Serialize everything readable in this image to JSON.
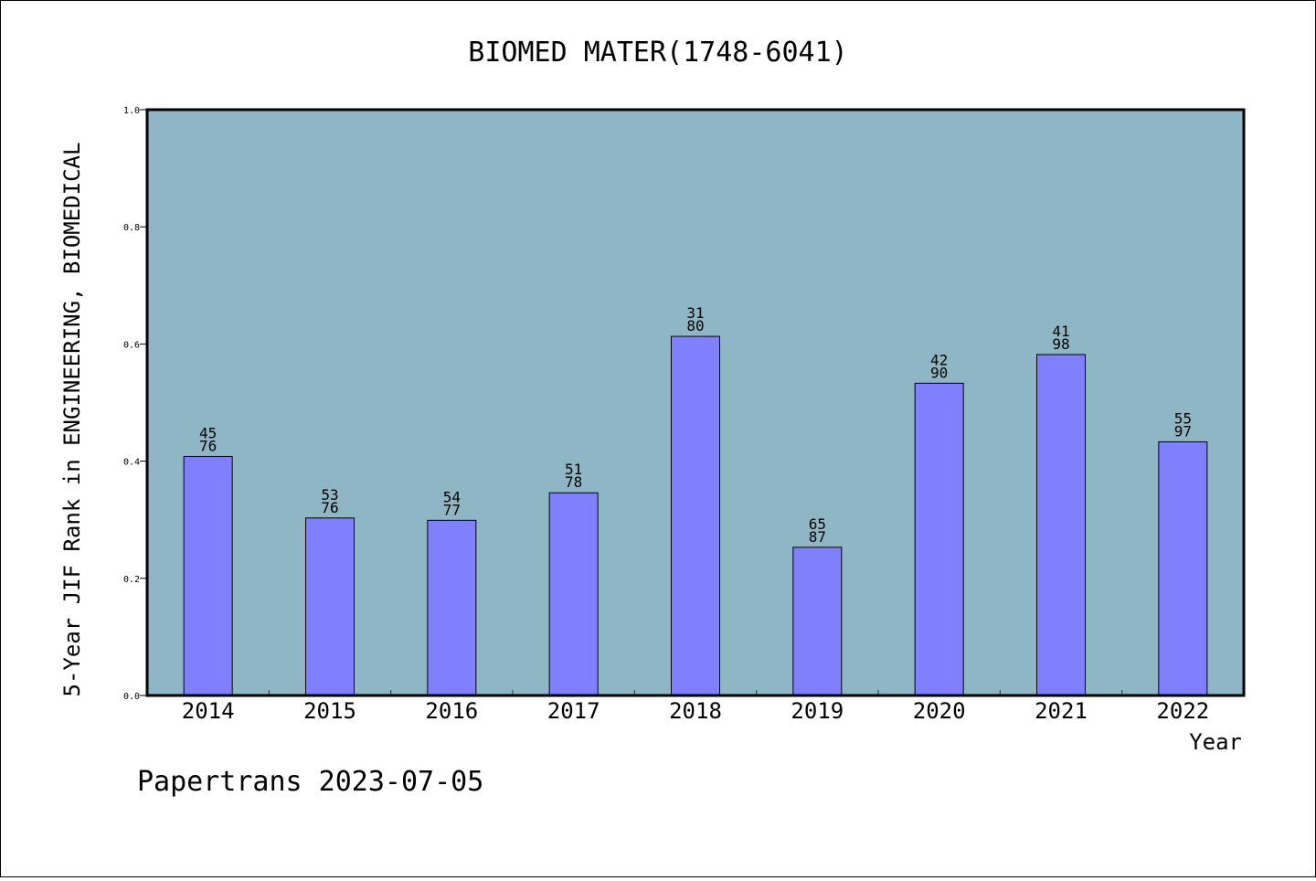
{
  "chart_data": {
    "type": "bar",
    "title": "BIOMED MATER(1748-6041)",
    "xlabel": "Year",
    "ylabel": "5-Year JIF Rank in ENGINEERING, BIOMEDICAL",
    "categories": [
      "2014",
      "2015",
      "2016",
      "2017",
      "2018",
      "2019",
      "2020",
      "2021",
      "2022"
    ],
    "values": [
      0.408,
      0.303,
      0.299,
      0.346,
      0.613,
      0.253,
      0.533,
      0.582,
      0.433
    ],
    "labels": [
      [
        "45",
        "76"
      ],
      [
        "53",
        "76"
      ],
      [
        "54",
        "77"
      ],
      [
        "51",
        "78"
      ],
      [
        "31",
        "80"
      ],
      [
        "65",
        "87"
      ],
      [
        "42",
        "90"
      ],
      [
        "41",
        "98"
      ],
      [
        "55",
        "97"
      ]
    ],
    "ylim": [
      0,
      1.0
    ],
    "yticks": [
      "0.0",
      "0.2",
      "0.4",
      "0.6",
      "0.8",
      "1.0"
    ],
    "grid": false,
    "bar_color": "#8080ff",
    "plot_background": "#8fb6c4"
  },
  "footer": "Papertrans 2023-07-05"
}
